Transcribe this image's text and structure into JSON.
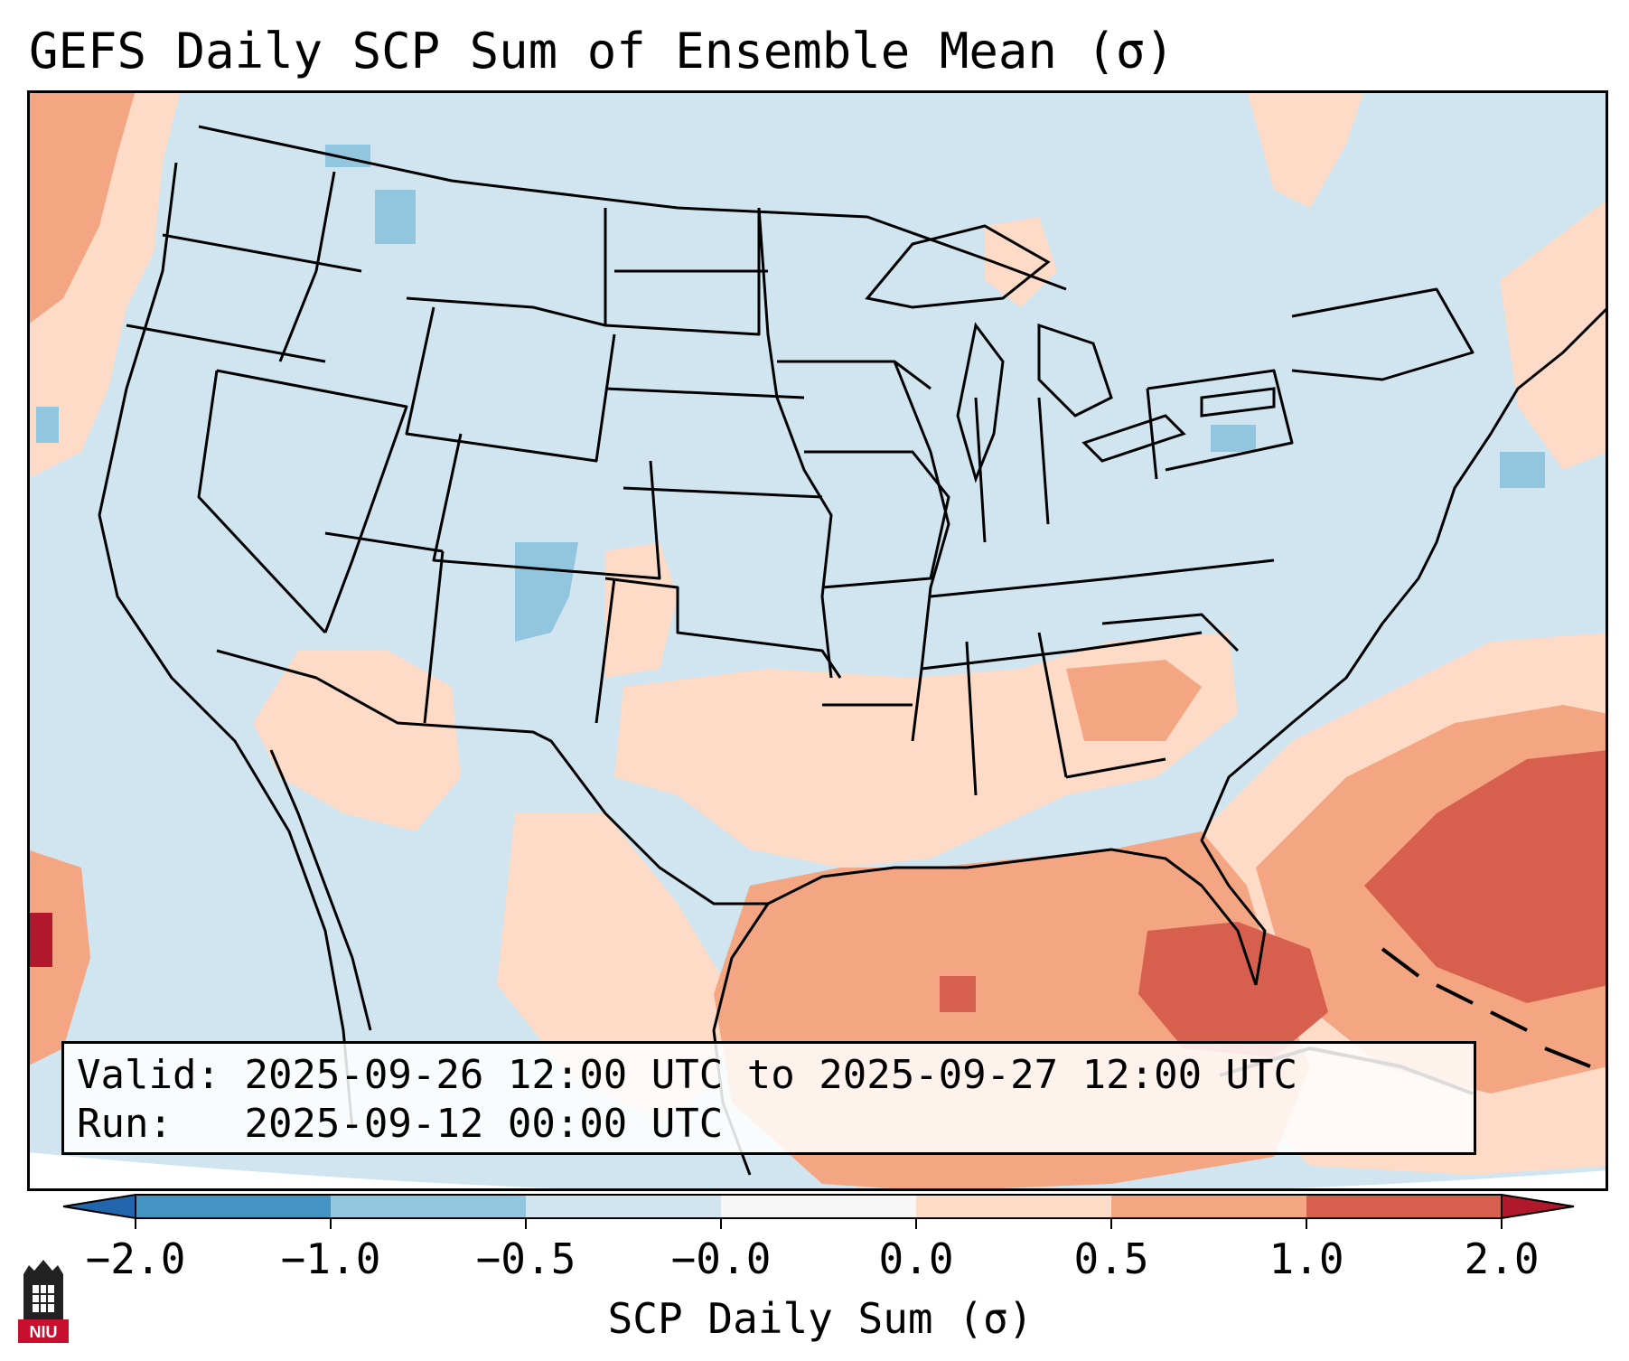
{
  "title": "GEFS Daily SCP Sum of Ensemble Mean (σ)",
  "info": {
    "valid_label": "Valid:",
    "valid_value": "2025-09-26 12:00 UTC to 2025-09-27 12:00 UTC",
    "run_label": "Run:",
    "run_value": "2025-09-12 00:00 UTC"
  },
  "colorbar": {
    "label": "SCP Daily Sum (σ)",
    "ticks": [
      "−2.0",
      "−1.0",
      "−0.5",
      "−0.0",
      "0.0",
      "0.5",
      "1.0",
      "2.0"
    ],
    "bins": [
      {
        "from": -2.0,
        "to": -1.0,
        "color": "#4393c3"
      },
      {
        "from": -1.0,
        "to": -0.5,
        "color": "#92c5de"
      },
      {
        "from": -0.5,
        "to": -0.0,
        "color": "#d1e5f0"
      },
      {
        "from": -0.0,
        "to": 0.0,
        "color": "#f7f7f7"
      },
      {
        "from": 0.0,
        "to": 0.5,
        "color": "#fddbc7"
      },
      {
        "from": 0.5,
        "to": 1.0,
        "color": "#f4a582"
      },
      {
        "from": 1.0,
        "to": 2.0,
        "color": "#d6604d"
      }
    ],
    "under_color": "#2166ac",
    "over_color": "#b2182b"
  },
  "map": {
    "background_color": "#d1e5f0",
    "border_color": "#000000"
  },
  "logo": {
    "text": "NIU",
    "color": "#c8102e"
  }
}
